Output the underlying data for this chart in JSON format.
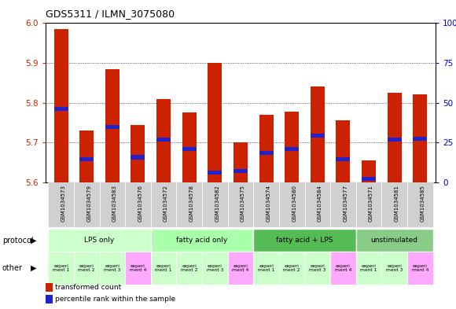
{
  "title": "GDS5311 / ILMN_3075080",
  "samples": [
    "GSM1034573",
    "GSM1034579",
    "GSM1034583",
    "GSM1034576",
    "GSM1034572",
    "GSM1034578",
    "GSM1034582",
    "GSM1034575",
    "GSM1034574",
    "GSM1034580",
    "GSM1034584",
    "GSM1034577",
    "GSM1034571",
    "GSM1034581",
    "GSM1034585"
  ],
  "bar_values": [
    5.985,
    5.73,
    5.885,
    5.745,
    5.81,
    5.775,
    5.9,
    5.7,
    5.77,
    5.778,
    5.84,
    5.755,
    5.655,
    5.825,
    5.822
  ],
  "blue_values": [
    5.785,
    5.658,
    5.74,
    5.663,
    5.708,
    5.683,
    5.625,
    5.628,
    5.673,
    5.683,
    5.718,
    5.658,
    5.608,
    5.708,
    5.71
  ],
  "ylim_left": [
    5.6,
    6.0
  ],
  "ylim_right": [
    0,
    100
  ],
  "yticks_left": [
    5.6,
    5.7,
    5.8,
    5.9,
    6.0
  ],
  "yticks_right": [
    0,
    25,
    50,
    75,
    100
  ],
  "ytick_labels_right": [
    "0",
    "25",
    "50",
    "75",
    "100%"
  ],
  "bar_color": "#cc2200",
  "blue_color": "#2222cc",
  "bar_width": 0.55,
  "protocols": [
    "LPS only",
    "fatty acid only",
    "fatty acid + LPS",
    "unstimulated"
  ],
  "protocol_ranges": [
    [
      0,
      4
    ],
    [
      4,
      8
    ],
    [
      8,
      12
    ],
    [
      12,
      15
    ]
  ],
  "protocol_colors": [
    "#ccffcc",
    "#aaffaa",
    "#55bb55",
    "#88cc88"
  ],
  "experiment_labels": [
    "experi\nment 1",
    "experi\nment 2",
    "experi\nment 3",
    "experi\nment 4",
    "experi\nment 1",
    "experi\nment 2",
    "experi\nment 3",
    "experi\nment 4",
    "experi\nment 1",
    "experi\nment 2",
    "experi\nment 3",
    "experi\nment 4",
    "experi\nment 1",
    "experi\nment 3",
    "experi\nment 4"
  ],
  "exp_colors": [
    "#ccffcc",
    "#ccffcc",
    "#ccffcc",
    "#ffaaff",
    "#ccffcc",
    "#ccffcc",
    "#ccffcc",
    "#ffaaff",
    "#ccffcc",
    "#ccffcc",
    "#ccffcc",
    "#ffaaff",
    "#ccffcc",
    "#ccffcc",
    "#ffaaff"
  ],
  "label_color_left": "#cc2200",
  "label_color_right": "#0000cc",
  "left_label": "protocol",
  "other_label": "other",
  "legend_entries": [
    "transformed count",
    "percentile rank within the sample"
  ]
}
